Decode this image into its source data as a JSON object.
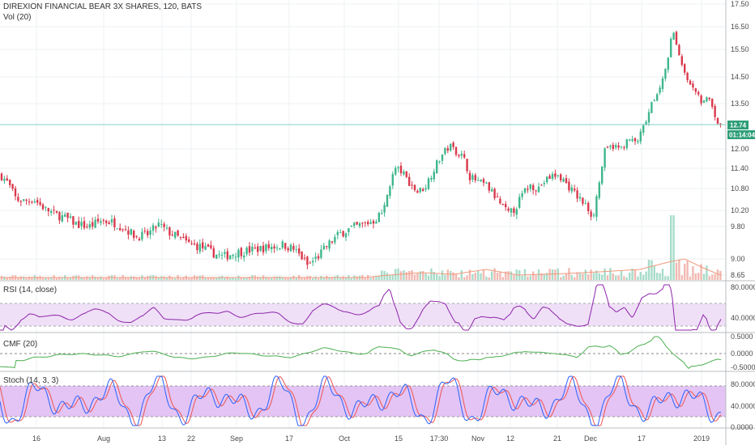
{
  "legends": {
    "title": "DIREXION FINANCIAL BEAR 3X SHARES, 120, BATS",
    "vol": "Vol (20)",
    "rsi": "RSI (14, close)",
    "cmf": "CMF (20)",
    "stoch": "Stoch (14, 3, 3)"
  },
  "price_tag": {
    "value": "12.74",
    "countdown": "01:14:04"
  },
  "colors": {
    "up": "#3fb68b",
    "down": "#d9394c",
    "up_vol": "#a7dcc9",
    "down_vol": "#f2b9b2",
    "vol_ma": "#f19a7d",
    "rsi": "#8e24aa",
    "rsi_band": "#efe0f7",
    "cmf": "#4caf50",
    "stoch_k": "#2962ff",
    "stoch_d": "#ef5350",
    "stoch_band": "#e3c4f4",
    "price_line": "#7fd0c6",
    "tag_bg": "#2e9e78"
  },
  "chart_data": [
    {
      "type": "candlestick",
      "title": "DIREXION FINANCIAL BEAR 3X SHARES, 120, BATS",
      "ylim": [
        8.65,
        17.5
      ],
      "y_ticks": [
        "17.50",
        "16.50",
        "15.50",
        "14.50",
        "13.50",
        "12.74",
        "12.00",
        "11.40",
        "10.80",
        "10.20",
        "9.80",
        "9.00",
        "8.65"
      ],
      "x_ticks": [
        "16",
        "Aug",
        "13",
        "22",
        "Sep",
        "17",
        "Oct",
        "15",
        "17:30",
        "Nov",
        "12",
        "21",
        "Dec",
        "17",
        "2019"
      ],
      "close_path": [
        [
          0,
          11.2
        ],
        [
          9,
          11.0
        ],
        [
          20,
          10.5
        ],
        [
          30,
          10.45
        ],
        [
          42,
          10.5
        ],
        [
          55,
          10.25
        ],
        [
          68,
          10.1
        ],
        [
          82,
          10.0
        ],
        [
          96,
          9.85
        ],
        [
          110,
          9.8
        ],
        [
          125,
          9.95
        ],
        [
          140,
          9.9
        ],
        [
          155,
          9.75
        ],
        [
          168,
          9.55
        ],
        [
          182,
          9.6
        ],
        [
          196,
          9.85
        ],
        [
          205,
          9.7
        ],
        [
          218,
          9.55
        ],
        [
          235,
          9.35
        ],
        [
          248,
          9.3
        ],
        [
          262,
          9.15
        ],
        [
          275,
          9.05
        ],
        [
          290,
          9.15
        ],
        [
          305,
          9.2
        ],
        [
          320,
          9.25
        ],
        [
          335,
          9.3
        ],
        [
          350,
          9.35
        ],
        [
          362,
          9.25
        ],
        [
          372,
          9.05
        ],
        [
          380,
          8.85
        ],
        [
          392,
          9.05
        ],
        [
          405,
          9.35
        ],
        [
          418,
          9.6
        ],
        [
          432,
          9.75
        ],
        [
          448,
          9.85
        ],
        [
          462,
          9.95
        ],
        [
          474,
          10.2
        ],
        [
          480,
          10.85
        ],
        [
          488,
          11.4
        ],
        [
          496,
          11.3
        ],
        [
          506,
          10.95
        ],
        [
          515,
          10.7
        ],
        [
          525,
          10.85
        ],
        [
          538,
          11.5
        ],
        [
          548,
          11.9
        ],
        [
          556,
          12.1
        ],
        [
          564,
          11.9
        ],
        [
          572,
          11.75
        ],
        [
          580,
          11.15
        ],
        [
          590,
          11.0
        ],
        [
          600,
          10.9
        ],
        [
          612,
          10.55
        ],
        [
          620,
          10.3
        ],
        [
          628,
          10.1
        ],
        [
          636,
          10.25
        ],
        [
          644,
          10.6
        ],
        [
          654,
          10.9
        ],
        [
          664,
          10.8
        ],
        [
          674,
          11.05
        ],
        [
          684,
          11.2
        ],
        [
          694,
          11.1
        ],
        [
          704,
          10.8
        ],
        [
          714,
          10.55
        ],
        [
          724,
          10.3
        ],
        [
          732,
          10.05
        ],
        [
          740,
          11.0
        ],
        [
          746,
          11.9
        ],
        [
          756,
          12.1
        ],
        [
          766,
          12.0
        ],
        [
          776,
          12.3
        ],
        [
          786,
          12.2
        ],
        [
          796,
          12.8
        ],
        [
          806,
          13.6
        ],
        [
          816,
          14.3
        ],
        [
          824,
          15.0
        ],
        [
          830,
          16.3
        ],
        [
          836,
          15.7
        ],
        [
          842,
          14.8
        ],
        [
          850,
          14.2
        ],
        [
          858,
          13.9
        ],
        [
          866,
          13.6
        ],
        [
          874,
          13.9
        ],
        [
          880,
          13.3
        ],
        [
          886,
          12.9
        ],
        [
          890,
          12.74
        ]
      ]
    },
    {
      "type": "bar",
      "title": "Vol (20)",
      "note": "volume histogram with moving average"
    },
    {
      "type": "line",
      "title": "RSI (14, close)",
      "ylim": [
        20,
        90
      ],
      "y_ticks": [
        "80.0000",
        "40.0000"
      ],
      "bands": [
        30,
        70
      ]
    },
    {
      "type": "line",
      "title": "CMF (20)",
      "ylim": [
        -0.55,
        0.55
      ],
      "y_ticks": [
        "0.5000",
        "0.0000",
        "-0.5000"
      ],
      "zero_line": 0
    },
    {
      "type": "line",
      "title": "Stoch (14, 3, 3)",
      "ylim": [
        0,
        100
      ],
      "y_ticks": [
        "80.0000",
        "40.0000",
        "0.0000"
      ],
      "bands": [
        20,
        80
      ],
      "series": [
        "%K",
        "%D"
      ]
    }
  ]
}
